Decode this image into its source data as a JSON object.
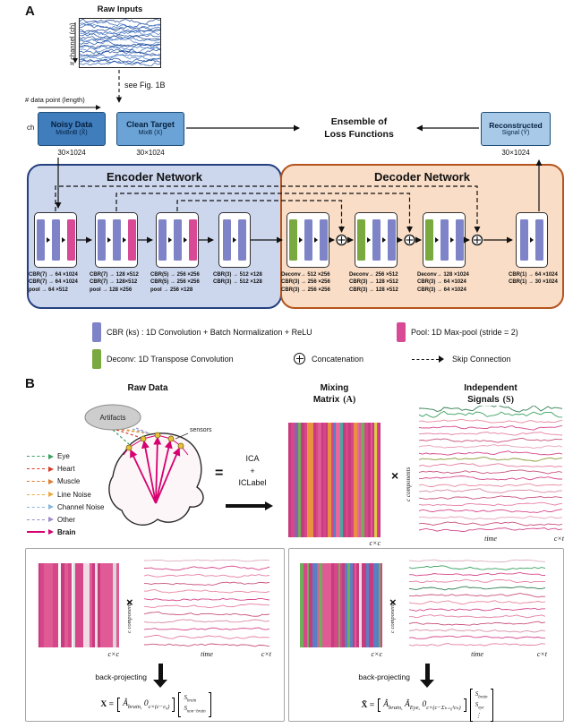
{
  "colors": {
    "cbr_bar": "#7f84c8",
    "pool_bar": "#d84a96",
    "deconv_bar": "#7aa93f",
    "brain_pink": "#d6006f",
    "encoder_fill": "#ccd7ee",
    "decoder_fill": "#f9ddc6"
  },
  "panelA": {
    "label": "A",
    "raw_inputs_title": "Raw Inputs",
    "channel_axis": "# channel (ch)",
    "see_fig": "see Fig. 1B",
    "length_axis": "# data point (length)",
    "ch_label": "ch",
    "noisy_title": "Noisy Data",
    "noisy_sub": "MixBnB (X̃)",
    "noisy_dim": "30×1024",
    "clean_title": "Clean Target",
    "clean_sub": "MixB (X)",
    "clean_dim": "30×1024",
    "ensemble_l1": "Ensemble of",
    "ensemble_l2": "Loss Functions",
    "recon_title": "Reconstructed",
    "recon_sub": "Signal (Ŷ)",
    "recon_dim": "30×1024",
    "encoder_title": "Encoder Network",
    "decoder_title": "Decoder Network",
    "enc_blocks": [
      {
        "lines": [
          "CBR(7) → 64 ×1024",
          "CBR(7) → 64 ×1024",
          "pool → 64 ×512"
        ]
      },
      {
        "lines": [
          "CBR(7) → 128 ×512",
          "CBR(7) → 128×512",
          "pool → 128 ×256"
        ]
      },
      {
        "lines": [
          "CBR(5) → 256 ×256",
          "CBR(5) → 256 ×256",
          "pool → 256 ×128"
        ]
      },
      {
        "lines": [
          "CBR(3) → 512 ×128",
          "CBR(3) → 512 ×128"
        ]
      }
    ],
    "dec_blocks": [
      {
        "lines": [
          "Deconv→ 512 ×256",
          "CBR(3) → 256 ×256",
          "CBR(3) → 256 ×256"
        ]
      },
      {
        "lines": [
          "Deconv→ 256 ×512",
          "CBR(3) → 128 ×512",
          "CBR(3) → 128 ×512"
        ]
      },
      {
        "lines": [
          "Deconv→ 128 ×1024",
          "CBR(3) → 64 ×1024",
          "CBR(3) → 64 ×1024"
        ]
      },
      {
        "lines": [
          "CBR(1) → 64 ×1024",
          "CBR(1) → 30 ×1024"
        ]
      }
    ],
    "legend_cbr": "CBR (ks) : 1D Convolution + Batch Normalization + ReLU",
    "legend_pool": "Pool: 1D Max-pool (stride = 2)",
    "legend_deconv": "Deconv: 1D Transpose Convolution",
    "legend_concat": "Concatenation",
    "legend_skip": "Skip Connection"
  },
  "panelB": {
    "label": "B",
    "raw_data_title": "Raw Data",
    "artifacts_label": "Artifacts",
    "sensors_label": "sensors",
    "equals_sign": "=",
    "times_sign": "×",
    "ica_l1": "ICA",
    "ica_l2": "+",
    "ica_l3": "ICLabel",
    "mixing_l1": "Mixing",
    "mixing_l2": "Matrix",
    "mixing_sym": "(A)",
    "indep_l1": "Independent",
    "indep_l2": "Signals",
    "indep_sym": "(S)",
    "c_components": "c components",
    "time_label": "time",
    "cxc": "c×c",
    "cxt": "c×t",
    "back_projecting": "back-projecting",
    "source_legend": [
      {
        "label": "Eye",
        "color": "#3aa05f",
        "solid": false
      },
      {
        "label": "Heart",
        "color": "#d63b2a",
        "solid": false
      },
      {
        "label": "Muscle",
        "color": "#e07b2f",
        "solid": false
      },
      {
        "label": "Line Noise",
        "color": "#eaa93e",
        "solid": false
      },
      {
        "label": "Channel Noise",
        "color": "#8ab4d8",
        "solid": false
      },
      {
        "label": "Other",
        "color": "#9e8cc8",
        "solid": false
      },
      {
        "label": "Brain",
        "color": "#d6006f",
        "solid": true
      }
    ],
    "formula_left": {
      "lhs": "X =",
      "matrix": "Â⟨brain,⟩ 0⟨c×(c−c₀)⟩",
      "rows": [
        "S⟨brain⟩",
        "S⟨non−brain⟩"
      ]
    },
    "formula_right": {
      "lhs": "X̃ =",
      "matrix": "Â⟨brain,⟩ Â⟨Eye,⟩ 0⟨c×(c−Σₖ₌₀¹cₖ)⟩",
      "rows": [
        "S⟨brain⟩",
        "S⟨eye⟩",
        "⋮"
      ]
    },
    "palettes": {
      "eeg": [
        "#16418f",
        "#2f62b8",
        "#4c7fcb",
        "#1b4ea0"
      ],
      "indep": [
        "#2e7d4f",
        "#3aa05f",
        "#e8889f",
        "#d6478a",
        "#e57fa3",
        "#c9527f",
        "#e8a0b8",
        "#d6478a",
        "#8a9a3a",
        "#e57fa3",
        "#c9527f",
        "#d6478a",
        "#e8889f",
        "#d98ca6",
        "#c9527f",
        "#e57fa3",
        "#d6478a",
        "#e8a0b8",
        "#c9527f",
        "#d6478a"
      ],
      "box_left": [
        "#dcaebf",
        "#d6478a",
        "#e57fa3",
        "#c9527f",
        "#e8889f",
        "#d6478a",
        "#e57fa3",
        "#c9527f",
        "#d98ca6",
        "#d6478a",
        "#e57fa3",
        "#c9527f"
      ],
      "box_right": [
        "#dcaebf",
        "#3aa05f",
        "#d6478a",
        "#e57fa3",
        "#2e7d4f",
        "#c9527f",
        "#e8889f",
        "#d6478a",
        "#e57fa3",
        "#c9527f",
        "#d98ca6",
        "#d6478a",
        "#e57fa3"
      ],
      "mixing": [
        "#d6478a",
        "#c73b7f",
        "#e05a95",
        "#6fae5a",
        "#e8923f",
        "#5a7fc4",
        "#8a63b0",
        "#e3c84a",
        "#d6478a",
        "#e05a95",
        "#c73b7f",
        "#4aa8a0",
        "#e8689d",
        "#d6478a"
      ],
      "pink_left": [
        "#d6478a",
        "#c73b7f",
        "#e05a95",
        "#f0dbe4",
        "#d6478a",
        "#c73b7f",
        "#d9d9d9",
        "#e05a95",
        "#d6478a",
        "#c73b7f",
        "#faf5f7",
        "#e05a95"
      ],
      "pink_right": [
        "#d6478a",
        "#c73b7f",
        "#e05a95",
        "#f0dbe4",
        "#6fae5a",
        "#d6478a",
        "#c73b7f",
        "#d9d9d9",
        "#e05a95",
        "#5a7fc4",
        "#d6478a",
        "#c73b7f",
        "#faf5f7"
      ]
    }
  }
}
